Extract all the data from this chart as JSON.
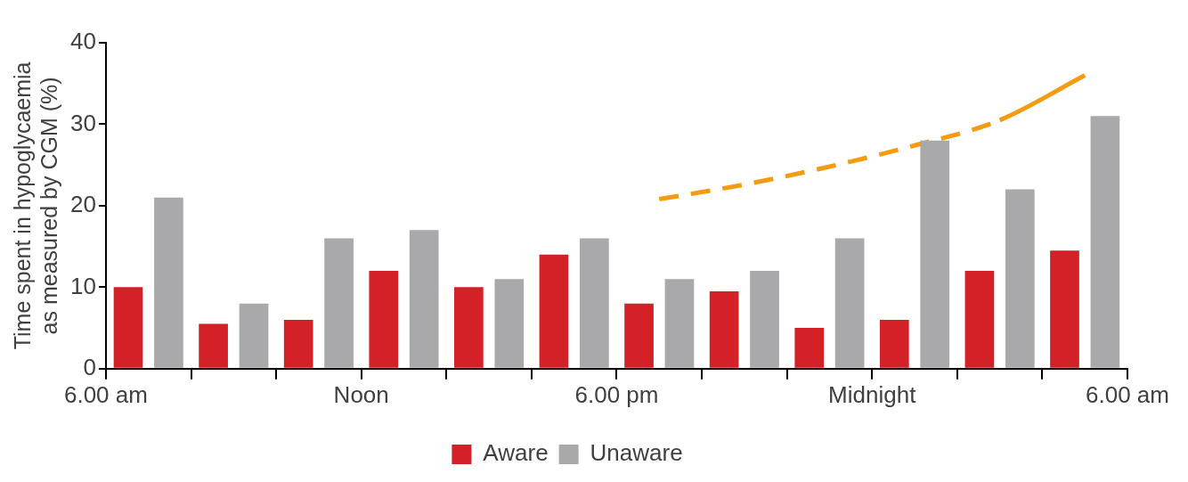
{
  "chart_data": {
    "type": "bar",
    "ylabel": "Time spent in hypoglycaemia as measured by CGM (%)",
    "categories": [
      null,
      null,
      null,
      null,
      null,
      null,
      null,
      null,
      null,
      null,
      null,
      null
    ],
    "annotations": [
      "6.00 am",
      "Noon",
      "6.00 pm",
      "Midnight",
      "6.00 am"
    ],
    "ylim": [
      0,
      40
    ],
    "yticks": [
      0,
      10,
      20,
      30,
      40
    ],
    "series": [
      {
        "name": "Aware",
        "color": "#d42027",
        "values": [
          10,
          5.5,
          6,
          12,
          10,
          14,
          8,
          9.5,
          5,
          6,
          12,
          14.5
        ]
      },
      {
        "name": "Unaware",
        "color": "#a9a9ab",
        "values": [
          21,
          8,
          16,
          17,
          11,
          16,
          11,
          12,
          16,
          28,
          22,
          31
        ]
      },
      {
        "type": "line",
        "color": "#f39c12",
        "line_style": "dashed",
        "values": [
          null,
          null,
          null,
          null,
          null,
          null,
          20.8,
          22.6,
          24.8,
          27.4,
          30.5,
          36
        ]
      }
    ],
    "grid": false,
    "legend": "bottom",
    "marker": "none"
  }
}
